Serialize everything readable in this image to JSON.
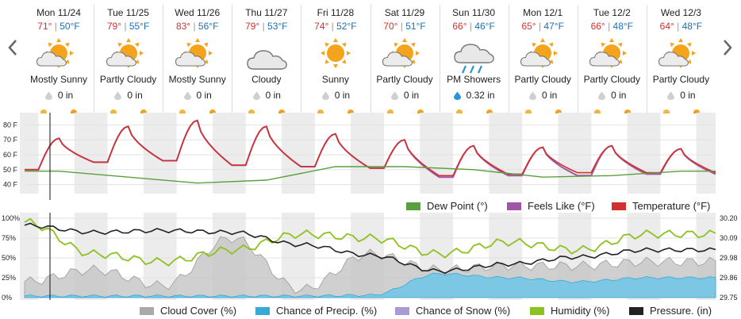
{
  "days": [
    {
      "date": "Mon 11/24",
      "hi": "71°",
      "lo": "50°F",
      "icon": "partly-sunny-icon",
      "cond": "Mostly Sunny",
      "precip": "0 in",
      "rain": false
    },
    {
      "date": "Tue 11/25",
      "hi": "79°",
      "lo": "55°F",
      "icon": "partly-sunny-icon",
      "cond": "Partly Cloudy",
      "precip": "0 in",
      "rain": false
    },
    {
      "date": "Wed 11/26",
      "hi": "83°",
      "lo": "56°F",
      "icon": "partly-sunny-icon",
      "cond": "Mostly Sunny",
      "precip": "0 in",
      "rain": false
    },
    {
      "date": "Thu 11/27",
      "hi": "79°",
      "lo": "53°F",
      "icon": "cloud-icon",
      "cond": "Cloudy",
      "precip": "0 in",
      "rain": false
    },
    {
      "date": "Fri 11/28",
      "hi": "74°",
      "lo": "52°F",
      "icon": "sun-icon",
      "cond": "Sunny",
      "precip": "0 in",
      "rain": false
    },
    {
      "date": "Sat 11/29",
      "hi": "70°",
      "lo": "51°F",
      "icon": "partly-sunny-icon",
      "cond": "Partly Cloudy",
      "precip": "0 in",
      "rain": false
    },
    {
      "date": "Sun 11/30",
      "hi": "66°",
      "lo": "46°F",
      "icon": "rain-cloud-icon",
      "cond": "PM Showers",
      "precip": "0.32 in",
      "rain": true
    },
    {
      "date": "Mon 12/1",
      "hi": "65°",
      "lo": "47°F",
      "icon": "partly-sunny-icon",
      "cond": "Partly Cloudy",
      "precip": "0 in",
      "rain": false
    },
    {
      "date": "Tue 12/2",
      "hi": "66°",
      "lo": "48°F",
      "icon": "partly-sunny-icon",
      "cond": "Partly Cloudy",
      "precip": "0 in",
      "rain": false
    },
    {
      "date": "Wed 12/3",
      "hi": "64°",
      "lo": "48°F",
      "icon": "partly-sunny-icon",
      "cond": "Partly Cloudy",
      "precip": "0 in",
      "rain": false
    }
  ],
  "temp_axis": [
    "80 F",
    "70 F",
    "60 F",
    "50 F",
    "40 F"
  ],
  "pct_axis": [
    "100%",
    "75%",
    "50%",
    "25%",
    "0%"
  ],
  "pressure_axis": [
    "30.20",
    "30.09",
    "29.98",
    "29.86",
    "29.75"
  ],
  "legend_top": [
    {
      "label": "Dew Point (°)",
      "color": "#5a9e3e"
    },
    {
      "label": "Feels Like (°F)",
      "color": "#a355a5"
    },
    {
      "label": "Temperature (°F)",
      "color": "#d0312d"
    }
  ],
  "legend_bottom": [
    {
      "label": "Cloud Cover (%)",
      "color": "#a9a9a9"
    },
    {
      "label": "Chance of Precip. (%)",
      "color": "#36a9d6"
    },
    {
      "label": "Chance of Snow (%)",
      "color": "#a999d4"
    },
    {
      "label": "Humidity (%)",
      "color": "#8cc21f"
    },
    {
      "label": "Pressure. (in)",
      "color": "#222222"
    }
  ],
  "colors": {
    "hi": "#d0312d",
    "lo": "#1f6fb2",
    "dew": "#5a9e3e",
    "feels": "#a355a5",
    "temp": "#d0312d",
    "cloud": "#c8c8c8",
    "precip": "#7cc8e4",
    "humidity": "#8cc21f",
    "pressure": "#222222"
  },
  "chart_data": [
    {
      "type": "line",
      "title": "",
      "ylabel": "",
      "ylim": [
        35,
        85
      ],
      "yticks": [
        "80 F",
        "70 F",
        "60 F",
        "50 F",
        "40 F"
      ],
      "x_days": [
        "Mon 11/24",
        "Tue 11/25",
        "Wed 11/26",
        "Thu 11/27",
        "Fri 11/28",
        "Sat 11/29",
        "Sun 11/30",
        "Mon 12/1",
        "Tue 12/2",
        "Wed 12/3"
      ],
      "series": [
        {
          "name": "Temperature (°F)",
          "daily_low": [
            50,
            55,
            56,
            53,
            52,
            51,
            46,
            47,
            48,
            48
          ],
          "daily_high": [
            71,
            79,
            83,
            79,
            74,
            70,
            66,
            65,
            66,
            64
          ]
        },
        {
          "name": "Feels Like (°F)",
          "daily_low": [
            50,
            55,
            56,
            53,
            52,
            51,
            45,
            46,
            46,
            47
          ],
          "daily_high": [
            71,
            79,
            83,
            79,
            74,
            70,
            66,
            65,
            66,
            64
          ]
        },
        {
          "name": "Dew Point (°)",
          "values": [
            49,
            45,
            41,
            43,
            52,
            52,
            50,
            45,
            46,
            49
          ]
        }
      ]
    },
    {
      "type": "area",
      "title": "",
      "ylim": [
        0,
        100
      ],
      "yticks": [
        "100%",
        "75%",
        "50%",
        "25%",
        "0%"
      ],
      "y2ticks": [
        "30.20",
        "30.09",
        "29.98",
        "29.86",
        "29.75"
      ],
      "x_days": [
        "Mon 11/24",
        "Tue 11/25",
        "Wed 11/26",
        "Thu 11/27",
        "Fri 11/28",
        "Sat 11/29",
        "Sun 11/30",
        "Mon 12/1",
        "Tue 12/2",
        "Wed 12/3"
      ],
      "series": [
        {
          "name": "Cloud Cover (%)",
          "values": [
            20,
            35,
            15,
            75,
            10,
            55,
            35,
            40,
            40,
            45
          ]
        },
        {
          "name": "Chance of Precip. (%)",
          "values": [
            2,
            2,
            2,
            2,
            2,
            3,
            30,
            25,
            20,
            25
          ]
        },
        {
          "name": "Chance of Snow (%)",
          "values": [
            0,
            0,
            0,
            0,
            0,
            0,
            0,
            0,
            0,
            0
          ]
        },
        {
          "name": "Humidity (%)",
          "values": [
            95,
            55,
            45,
            60,
            80,
            75,
            55,
            70,
            60,
            80
          ]
        },
        {
          "name": "Pressure. (in)",
          "values": [
            30.16,
            30.12,
            30.13,
            30.12,
            30.05,
            29.99,
            29.9,
            29.94,
            29.98,
            30.02
          ]
        }
      ]
    }
  ]
}
